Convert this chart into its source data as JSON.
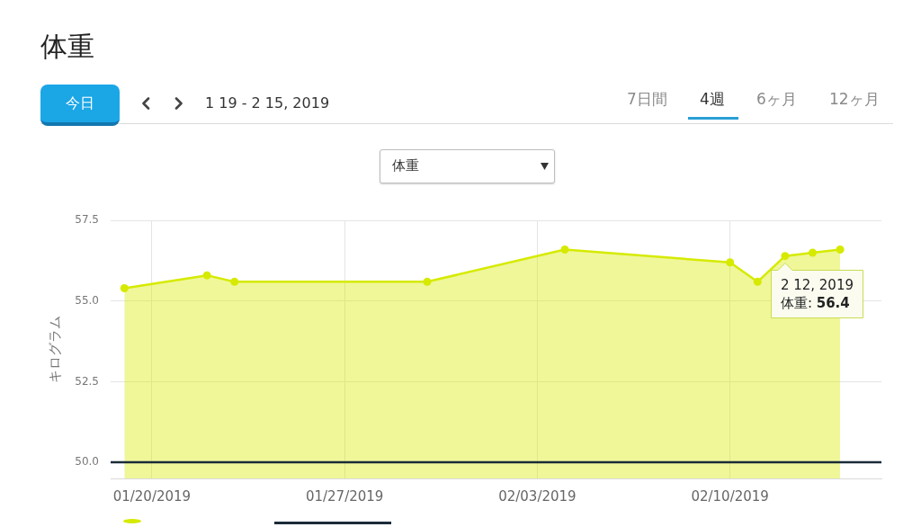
{
  "chart_data": {
    "type": "area",
    "title": "体重",
    "subtitle": "1 19 - 2 15, 2019",
    "ylabel": "キログラム",
    "x": [
      "2019-01-19",
      "2019-01-22",
      "2019-01-23",
      "2019-01-30",
      "2019-02-04",
      "2019-02-10",
      "2019-02-11",
      "2019-02-12",
      "2019-02-13",
      "2019-02-14"
    ],
    "values": [
      55.4,
      55.8,
      55.6,
      55.6,
      56.6,
      56.2,
      55.6,
      56.4,
      56.5,
      56.6
    ],
    "color": "#d6ea00",
    "xlim": [
      "2019-01-18T12:00",
      "2019-02-15T12:00"
    ],
    "xticks": [
      {
        "value": "2019-01-20",
        "label": "01/20/2019"
      },
      {
        "value": "2019-01-27",
        "label": "01/27/2019"
      },
      {
        "value": "2019-02-03",
        "label": "02/03/2019"
      },
      {
        "value": "2019-02-10",
        "label": "02/10/2019"
      }
    ],
    "ylim": [
      49.5,
      57.5
    ],
    "yticks": [
      {
        "value": 50,
        "label": "50.0"
      },
      52.5,
      {
        "value": 55,
        "label": "55.0"
      },
      57.5
    ],
    "grid": true,
    "marker": "circle",
    "ref_lines": [
      {
        "axis": "y",
        "value": 50,
        "color": "#1b2b38"
      }
    ],
    "annotations": [
      "今日",
      "7日間",
      "4週",
      "6ヶ月",
      "12ヶ月",
      "体重",
      {
        "text": "2 12, 2019\n体重: 56.4",
        "x": "2019-02-12",
        "y": 56.4
      }
    ]
  }
}
